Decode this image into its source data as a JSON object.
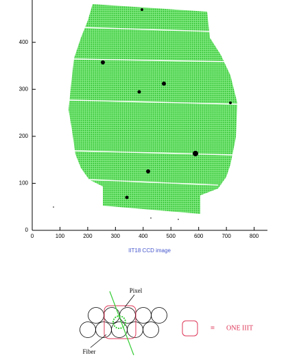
{
  "chart_data": {
    "type": "image",
    "xlabel": "IIT18 CCD image",
    "xlim": [
      0,
      848
    ],
    "ylim": [
      0,
      490
    ],
    "xticks": [
      0,
      100,
      200,
      300,
      400,
      500,
      600,
      700,
      800
    ],
    "yticks": [
      0,
      100,
      200,
      300,
      400
    ],
    "color": "#33dd33"
  },
  "diagram": {
    "pixel_label": "Pixel",
    "fiber_label": "Fiber",
    "equiv": "≡",
    "legend_text": "ONE IIIT"
  }
}
